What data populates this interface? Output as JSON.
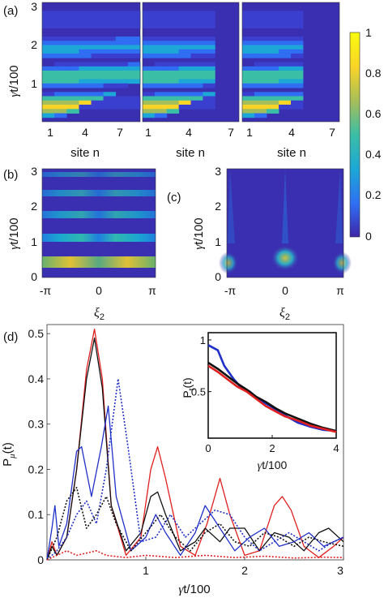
{
  "panels": {
    "a": {
      "label": "(a)",
      "ylabel_greek": "γ",
      "ylabel_rest": "t/100",
      "yticks": [
        "1",
        "2",
        "3"
      ],
      "xlabel": "site n",
      "sub_xticks": [
        [
          "1",
          "4",
          "7"
        ],
        [
          "1",
          "4",
          "7"
        ],
        [
          "1",
          "4",
          "7"
        ]
      ]
    },
    "colorbar": {
      "ticks": [
        "1",
        "0.8",
        "0.6",
        "0.4",
        "0.2",
        "0"
      ],
      "colors": [
        "#3e26a8",
        "#2f6ef2",
        "#1ca7d6",
        "#3bbea6",
        "#a4be5a",
        "#f9d428",
        "#f9fb0e"
      ]
    },
    "b": {
      "label": "(b)",
      "ylabel_greek": "γ",
      "ylabel_rest": "t/100",
      "yticks": [
        "0",
        "1",
        "2",
        "3"
      ],
      "xticks": [
        "-π",
        "0",
        "π"
      ],
      "xlabel_greek": "ξ",
      "xlabel_sub": "2"
    },
    "c": {
      "label": "(c)",
      "ylabel_greek": "γ",
      "ylabel_rest": "t/100",
      "yticks": [
        "0",
        "1",
        "2",
        "3"
      ],
      "xticks": [
        "-π",
        "0",
        "π"
      ],
      "xlabel_greek": "ξ",
      "xlabel_sub": "2"
    },
    "d": {
      "label": "(d)",
      "ylabel_main": "P",
      "ylabel_sub": "μ",
      "ylabel_tail": "(t)",
      "yticks": [
        "0",
        "0.1",
        "0.2",
        "0.3",
        "0.4",
        "0.5"
      ],
      "xticks": [
        "1",
        "2",
        "3"
      ],
      "xlabel_greek": "γ",
      "xlabel_rest": "t/100",
      "inset": {
        "ylabel_main": "P",
        "ylabel_sub": "t",
        "ylabel_tail": "(t)",
        "yticks": [
          "0.5",
          "1"
        ],
        "xticks": [
          "0",
          "2",
          "4"
        ],
        "xlabel_greek": "γ",
        "xlabel_rest": "t/100"
      }
    }
  },
  "chart_data": {
    "type": "line",
    "x_range": [
      0,
      3
    ],
    "y_range": [
      0,
      0.52
    ],
    "series": [
      {
        "style": "solid",
        "color": "#e02020",
        "x": [
          0,
          0.05,
          0.1,
          0.2,
          0.3,
          0.4,
          0.48,
          0.56,
          0.65,
          0.8,
          0.95,
          1.05,
          1.12,
          1.2,
          1.35,
          1.5,
          1.62,
          1.75,
          1.85,
          2.0,
          2.15,
          2.3,
          2.38,
          2.47,
          2.6,
          2.75,
          2.9,
          3.0
        ],
        "y": [
          0.0,
          0.04,
          0.01,
          0.05,
          0.2,
          0.42,
          0.51,
          0.4,
          0.12,
          0.01,
          0.05,
          0.2,
          0.25,
          0.18,
          0.03,
          0.01,
          0.08,
          0.18,
          0.1,
          0.01,
          0.02,
          0.12,
          0.14,
          0.11,
          0.03,
          0.005,
          0.03,
          0.05
        ]
      },
      {
        "style": "solid",
        "color": "#111111",
        "x": [
          0,
          0.05,
          0.1,
          0.2,
          0.3,
          0.4,
          0.48,
          0.56,
          0.65,
          0.8,
          0.95,
          1.05,
          1.12,
          1.2,
          1.35,
          1.5,
          1.6,
          1.75,
          1.85,
          2.0,
          2.15,
          2.3,
          2.45,
          2.6,
          2.75,
          2.85,
          3.0
        ],
        "y": [
          0.0,
          0.03,
          0.01,
          0.05,
          0.2,
          0.4,
          0.49,
          0.38,
          0.12,
          0.02,
          0.06,
          0.14,
          0.15,
          0.1,
          0.02,
          0.04,
          0.07,
          0.04,
          0.07,
          0.07,
          0.02,
          0.06,
          0.05,
          0.02,
          0.06,
          0.07,
          0.04
        ]
      },
      {
        "style": "solid",
        "color": "#2030c8",
        "x": [
          0,
          0.05,
          0.08,
          0.12,
          0.2,
          0.3,
          0.35,
          0.45,
          0.55,
          0.62,
          0.7,
          0.85,
          1.0,
          1.1,
          1.2,
          1.35,
          1.5,
          1.6,
          1.75,
          1.9,
          2.05,
          2.2,
          2.35,
          2.5,
          2.65,
          2.8,
          3.0
        ],
        "y": [
          0.0,
          0.07,
          0.12,
          0.03,
          0.08,
          0.24,
          0.25,
          0.14,
          0.25,
          0.34,
          0.14,
          0.02,
          0.05,
          0.1,
          0.06,
          0.01,
          0.06,
          0.12,
          0.07,
          0.02,
          0.05,
          0.07,
          0.03,
          0.04,
          0.06,
          0.03,
          0.05
        ]
      },
      {
        "style": "dotted",
        "color": "#2030c8",
        "x": [
          0,
          0.1,
          0.2,
          0.3,
          0.4,
          0.5,
          0.6,
          0.72,
          0.82,
          0.95,
          1.1,
          1.25,
          1.4,
          1.55,
          1.7,
          1.85,
          2.0,
          2.15,
          2.3,
          2.45,
          2.6,
          2.75,
          2.9,
          3.0
        ],
        "y": [
          0.0,
          0.02,
          0.05,
          0.1,
          0.13,
          0.08,
          0.2,
          0.4,
          0.25,
          0.04,
          0.05,
          0.1,
          0.05,
          0.08,
          0.11,
          0.1,
          0.05,
          0.02,
          0.04,
          0.06,
          0.04,
          0.02,
          0.04,
          0.05
        ]
      },
      {
        "style": "dotted",
        "color": "#111111",
        "x": [
          0,
          0.1,
          0.2,
          0.3,
          0.4,
          0.5,
          0.6,
          0.7,
          0.85,
          1.0,
          1.15,
          1.3,
          1.45,
          1.6,
          1.75,
          1.9,
          2.05,
          2.2,
          2.35,
          2.5,
          2.65,
          2.8,
          3.0
        ],
        "y": [
          0.0,
          0.05,
          0.13,
          0.16,
          0.07,
          0.1,
          0.14,
          0.08,
          0.02,
          0.06,
          0.1,
          0.05,
          0.02,
          0.06,
          0.08,
          0.04,
          0.03,
          0.06,
          0.05,
          0.03,
          0.05,
          0.04,
          0.03
        ]
      },
      {
        "style": "dotted",
        "color": "#e02020",
        "x": [
          0,
          0.1,
          0.2,
          0.3,
          0.4,
          0.5,
          0.6,
          0.8,
          1.0,
          1.3,
          1.6,
          1.9,
          2.2,
          2.5,
          2.8,
          3.0
        ],
        "y": [
          0.0,
          0.01,
          0.02,
          0.01,
          0.015,
          0.02,
          0.01,
          0.005,
          0.01,
          0.005,
          0.01,
          0.005,
          0.008,
          0.004,
          0.006,
          0.005
        ]
      }
    ],
    "inset": {
      "type": "line",
      "x_range": [
        0,
        4
      ],
      "y_range": [
        0.05,
        1.07
      ],
      "series": [
        {
          "color": "#2030c8",
          "x": [
            0,
            0.3,
            0.5,
            0.8,
            1.0,
            1.3,
            1.6,
            2.0,
            2.4,
            2.8,
            3.2,
            3.6,
            4.0
          ],
          "y": [
            0.95,
            0.9,
            0.75,
            0.62,
            0.55,
            0.5,
            0.42,
            0.35,
            0.27,
            0.2,
            0.16,
            0.13,
            0.12
          ]
        },
        {
          "color": "#111111",
          "x": [
            0,
            0.3,
            0.6,
            0.9,
            1.2,
            1.5,
            1.8,
            2.1,
            2.4,
            2.8,
            3.2,
            3.6,
            4.0
          ],
          "y": [
            0.78,
            0.72,
            0.65,
            0.58,
            0.52,
            0.45,
            0.4,
            0.34,
            0.29,
            0.24,
            0.19,
            0.15,
            0.12
          ]
        },
        {
          "color": "#e02020",
          "x": [
            0,
            0.3,
            0.6,
            0.9,
            1.2,
            1.5,
            1.8,
            2.1,
            2.4,
            2.8,
            3.2,
            3.6,
            4.0
          ],
          "y": [
            0.75,
            0.69,
            0.62,
            0.55,
            0.5,
            0.43,
            0.36,
            0.31,
            0.26,
            0.22,
            0.17,
            0.14,
            0.11
          ]
        }
      ]
    }
  }
}
